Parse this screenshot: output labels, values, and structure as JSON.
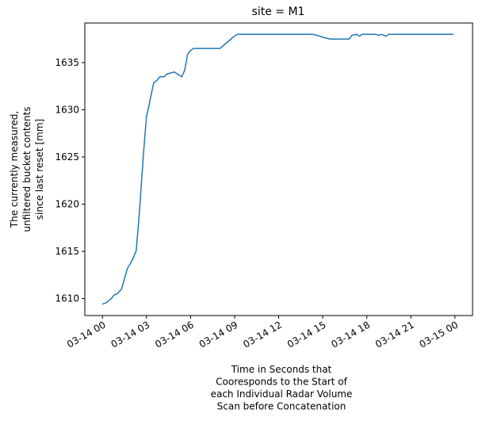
{
  "chart_data": {
    "type": "line",
    "title": "site = M1",
    "ylabel_lines": [
      "The currently measured,",
      "unfiltered bucket contents",
      "since last reset [mm]"
    ],
    "xlabel_lines": [
      "Time in Seconds that",
      "Cooresponds to the Start of",
      "each Individual Radar Volume",
      "Scan before Concatenation"
    ],
    "x_unit": "hours since 03-14 00:00",
    "xlim": [
      -1.2,
      25.2
    ],
    "ylim": [
      1608.2,
      1639.2
    ],
    "x_ticks": [
      {
        "value": 0,
        "label": "03-14 00"
      },
      {
        "value": 3,
        "label": "03-14 03"
      },
      {
        "value": 6,
        "label": "03-14 06"
      },
      {
        "value": 9,
        "label": "03-14 09"
      },
      {
        "value": 12,
        "label": "03-14 12"
      },
      {
        "value": 15,
        "label": "03-14 15"
      },
      {
        "value": 18,
        "label": "03-14 18"
      },
      {
        "value": 21,
        "label": "03-14 21"
      },
      {
        "value": 24,
        "label": "03-15 00"
      }
    ],
    "y_ticks": [
      {
        "value": 1610,
        "label": "1610"
      },
      {
        "value": 1615,
        "label": "1615"
      },
      {
        "value": 1620,
        "label": "1620"
      },
      {
        "value": 1625,
        "label": "1625"
      },
      {
        "value": 1630,
        "label": "1630"
      },
      {
        "value": 1635,
        "label": "1635"
      }
    ],
    "grid": false,
    "colors": {
      "line": "#1f77b4"
    },
    "series": [
      {
        "x": [
          0,
          0.3,
          0.6,
          0.8,
          1.0,
          1.3,
          1.5,
          1.7,
          1.9,
          2.1,
          2.3,
          2.5,
          2.8,
          3.0,
          3.2,
          3.3,
          3.5,
          3.7,
          3.9,
          4.2,
          4.4,
          4.9,
          5.2,
          5.4,
          5.6,
          5.8,
          6.0,
          6.2,
          6.5,
          7.0,
          8.0,
          8.6,
          8.9,
          9.2,
          10.0,
          11.0,
          12.0,
          13.0,
          14.3,
          14.6,
          15.0,
          15.5,
          16.0,
          16.5,
          16.8,
          17.0,
          17.3,
          17.5,
          17.7,
          17.9,
          18.3,
          18.6,
          18.8,
          19.0,
          19.3,
          19.5,
          20.0,
          21.0,
          22.0,
          23.0,
          23.9
        ],
        "y": [
          1609.4,
          1609.6,
          1610.0,
          1610.4,
          1610.5,
          1611.0,
          1612.1,
          1613.2,
          1613.7,
          1614.3,
          1615.1,
          1618.8,
          1625.5,
          1629.3,
          1630.7,
          1631.5,
          1632.9,
          1633.1,
          1633.5,
          1633.5,
          1633.8,
          1634.0,
          1633.7,
          1633.5,
          1634.2,
          1635.9,
          1636.3,
          1636.5,
          1636.5,
          1636.5,
          1636.5,
          1637.3,
          1637.7,
          1638.0,
          1638.0,
          1638.0,
          1638.0,
          1638.0,
          1638.0,
          1637.9,
          1637.7,
          1637.5,
          1637.5,
          1637.5,
          1637.5,
          1637.9,
          1638.0,
          1637.8,
          1638.0,
          1638.0,
          1638.0,
          1638.0,
          1637.9,
          1638.0,
          1637.8,
          1638.0,
          1638.0,
          1638.0,
          1638.0,
          1638.0,
          1638.0
        ]
      }
    ]
  }
}
